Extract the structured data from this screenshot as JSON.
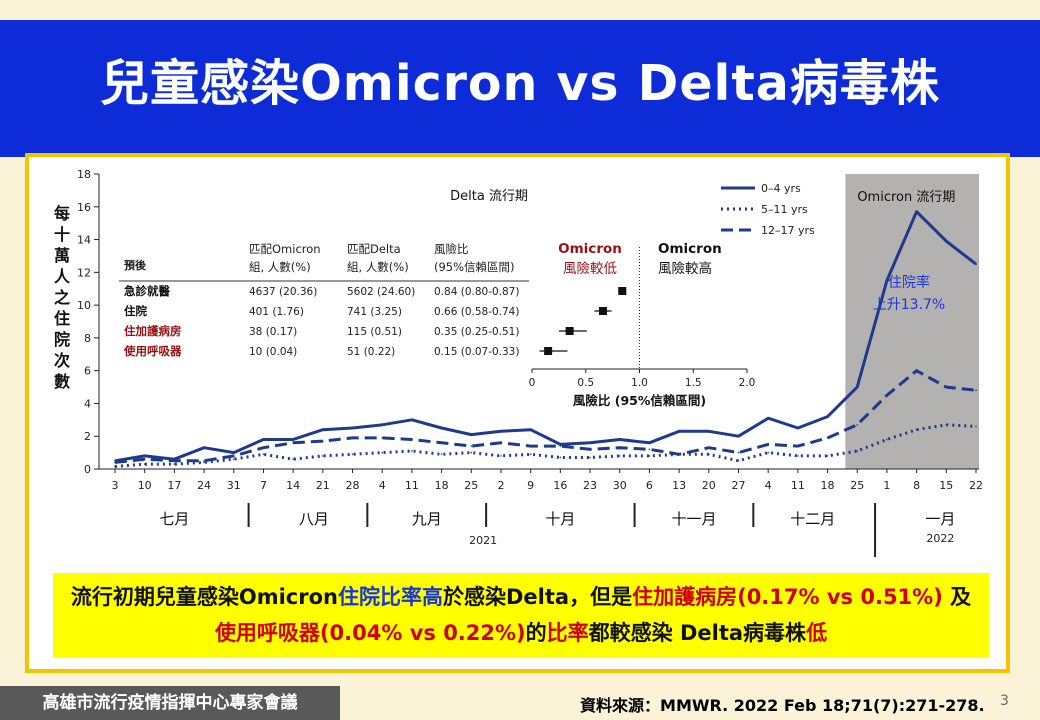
{
  "slide": {
    "title": "兒童感染Omicron vs Delta病毒株",
    "page_number": "3",
    "footer_left": "高雄市流行疫情指揮中心專家會議",
    "source_prefix": "資料來源：",
    "source": "MMWR. 2022 Feb 18;71(7):271-278."
  },
  "note": {
    "p1": "流行初期兒童感染Omicron",
    "p2": "住院比率高",
    "p3": "於感染Delta，但是",
    "p4": "住加護病房(0.17% vs 0.51%)",
    "p5": " 及",
    "p6": "使用呼吸器(0.04% vs 0.22%)",
    "p7": "的",
    "p8": "比率",
    "p9": "都較感染 Delta病毒株",
    "p10": "低"
  },
  "colors": {
    "line": "#1f3a8c",
    "omicron_shade": "#b4b1b1",
    "red": "#c00000",
    "blue": "#1a37d6",
    "note_bg": "#ffff00",
    "accent": "#f5c400"
  },
  "chart_data": {
    "type": "line",
    "ylabel": "每十萬人之住院次數",
    "ylim": [
      0,
      18
    ],
    "yticks": [
      0,
      2,
      4,
      6,
      8,
      10,
      12,
      14,
      16,
      18
    ],
    "x_tick_labels": [
      "3",
      "10",
      "17",
      "24",
      "31",
      "7",
      "14",
      "21",
      "28",
      "4",
      "11",
      "18",
      "25",
      "2",
      "9",
      "16",
      "23",
      "30",
      "6",
      "13",
      "20",
      "27",
      "4",
      "11",
      "18",
      "25",
      "1",
      "8",
      "15",
      "22"
    ],
    "months": [
      "七月",
      "八月",
      "九月",
      "十月",
      "十一月",
      "十二月",
      "一月"
    ],
    "year_labels": [
      "2021",
      "2022"
    ],
    "delta_label": "Delta 流行期",
    "omicron_label": "Omicron 流行期",
    "omicron_start_index": 24.6,
    "legend": [
      "0–4 yrs",
      "5–11 yrs",
      "12–17 yrs"
    ],
    "series": [
      {
        "name": "0–4 yrs",
        "style": "solid",
        "values": [
          0.5,
          0.8,
          0.6,
          1.3,
          1.0,
          1.8,
          1.8,
          2.4,
          2.5,
          2.7,
          3.0,
          2.5,
          2.1,
          2.3,
          2.4,
          1.5,
          1.6,
          1.8,
          1.6,
          2.3,
          2.3,
          2.0,
          3.1,
          2.5,
          3.2,
          5.0,
          11.5,
          15.7,
          13.9,
          12.5
        ]
      },
      {
        "name": "5–11 yrs",
        "style": "dotted",
        "values": [
          0.15,
          0.3,
          0.3,
          0.4,
          0.6,
          0.9,
          0.6,
          0.8,
          0.9,
          1.0,
          1.1,
          0.9,
          1.0,
          0.8,
          0.9,
          0.7,
          0.7,
          0.8,
          0.8,
          0.9,
          0.9,
          0.5,
          1.0,
          0.8,
          0.8,
          1.1,
          1.8,
          2.4,
          2.7,
          2.6
        ]
      },
      {
        "name": "12–17 yrs",
        "style": "dashed",
        "values": [
          0.4,
          0.6,
          0.5,
          0.5,
          0.8,
          1.3,
          1.6,
          1.7,
          1.9,
          1.9,
          1.8,
          1.6,
          1.4,
          1.6,
          1.4,
          1.4,
          1.2,
          1.3,
          1.2,
          0.9,
          1.3,
          1.0,
          1.5,
          1.4,
          1.9,
          2.7,
          4.5,
          6.0,
          5.0,
          4.8
        ]
      }
    ],
    "annotation": [
      "住院率",
      "上升13.7%"
    ],
    "inset": {
      "headers": [
        [
          "預後",
          ""
        ],
        [
          "匹配Omicron",
          "組, 人數(%)"
        ],
        [
          "匹配Delta",
          "組, 人數(%)"
        ],
        [
          "風險比",
          "(95%信賴區間)"
        ]
      ],
      "rows": [
        {
          "outcome": "急診就醫",
          "omicron": "4637 (20.36)",
          "delta": "5602 (24.60)",
          "hr": "0.84 (0.80-0.87)",
          "est": 0.84,
          "lo": 0.8,
          "hi": 0.87,
          "red": false
        },
        {
          "outcome": "住院",
          "omicron": "401 (1.76)",
          "delta": "741 (3.25)",
          "hr": "0.66 (0.58-0.74)",
          "est": 0.66,
          "lo": 0.58,
          "hi": 0.74,
          "red": false
        },
        {
          "outcome": "住加護病房",
          "omicron": "38 (0.17)",
          "delta": "115 (0.51)",
          "hr": "0.35 (0.25-0.51)",
          "est": 0.35,
          "lo": 0.25,
          "hi": 0.51,
          "red": true
        },
        {
          "outcome": "使用呼吸器",
          "omicron": "10 (0.04)",
          "delta": "51 (0.22)",
          "hr": "0.15 (0.07-0.33)",
          "est": 0.15,
          "lo": 0.07,
          "hi": 0.33,
          "red": true
        }
      ],
      "forest_xticks": [
        0,
        0.5,
        1.0,
        1.5,
        2.0
      ],
      "forest_xtick_labels": [
        "0",
        "0.5",
        "1.0",
        "1.5",
        "2.0"
      ],
      "forest_xlabel": "風險比 (95%信賴區間)",
      "left_label": [
        "Omicron",
        "風險較低"
      ],
      "right_label": [
        "Omicron",
        "風險較高"
      ]
    }
  }
}
